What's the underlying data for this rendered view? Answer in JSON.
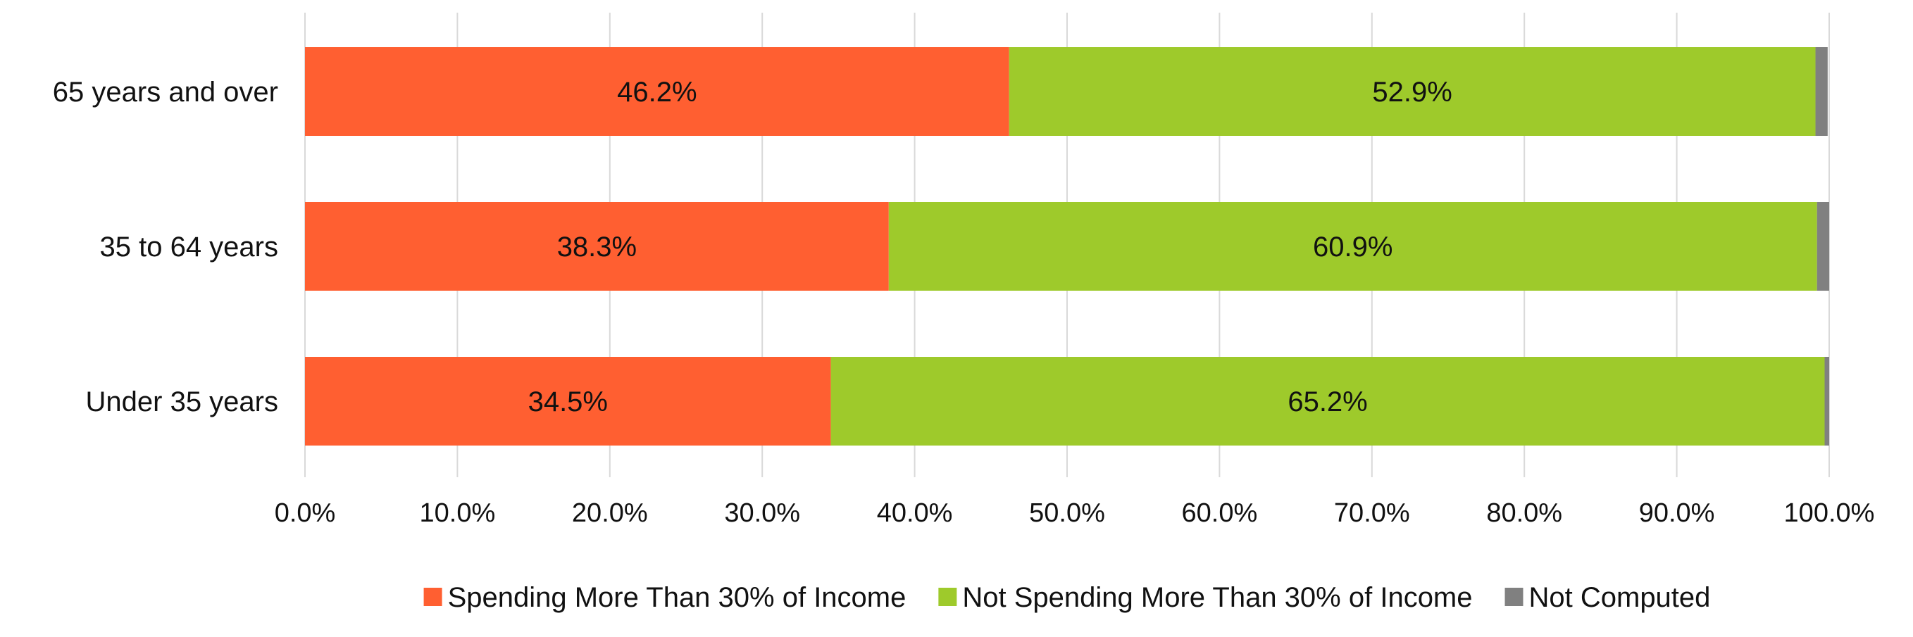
{
  "chart_data": {
    "type": "bar",
    "orientation": "horizontal",
    "stacked": true,
    "categories": [
      "65 years and over",
      "35 to 64 years",
      "Under 35 years"
    ],
    "series": [
      {
        "name": "Spending More Than 30% of Income",
        "color": "#FF5F31",
        "values": [
          46.2,
          38.3,
          34.5
        ]
      },
      {
        "name": "Not Spending More Than 30% of Income",
        "color": "#9ECA2B",
        "values": [
          52.9,
          60.9,
          65.2
        ]
      },
      {
        "name": "Not Computed",
        "color": "#808080",
        "values": [
          0.8,
          0.8,
          0.3
        ]
      }
    ],
    "data_labels": {
      "Spending More Than 30% of Income": [
        "46.2%",
        "38.3%",
        "34.5%"
      ],
      "Not Spending More Than 30% of Income": [
        "52.9%",
        "60.9%",
        "65.2%"
      ]
    },
    "x_ticks": [
      "0.0%",
      "10.0%",
      "20.0%",
      "30.0%",
      "40.0%",
      "50.0%",
      "60.0%",
      "70.0%",
      "80.0%",
      "90.0%",
      "100.0%"
    ],
    "xlim": [
      0,
      100
    ],
    "grid": "vertical",
    "legend_position": "bottom-center"
  }
}
